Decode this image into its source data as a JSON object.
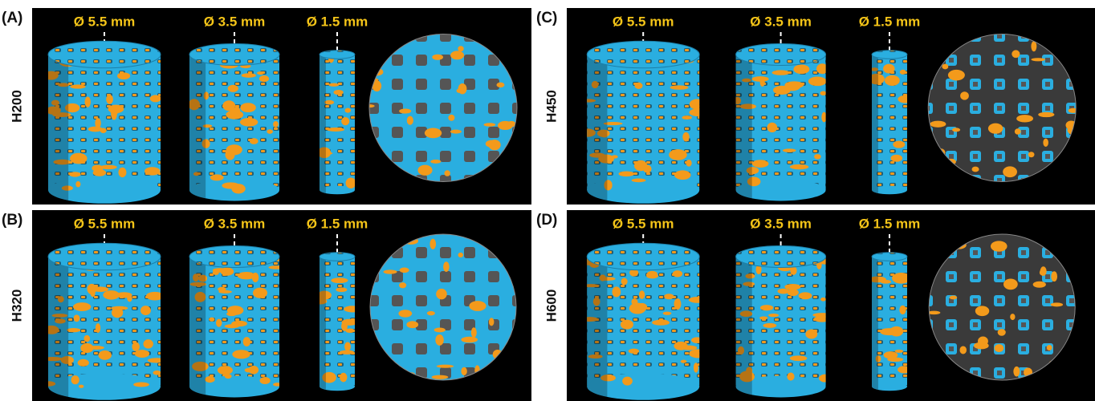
{
  "panels": [
    {
      "label": "(A)",
      "sample": "H200",
      "diameters": [
        "Ø 5.5 mm",
        "Ø 3.5 mm",
        "Ø 1.5 mm"
      ]
    },
    {
      "label": "(B)",
      "sample": "H320",
      "diameters": [
        "Ø 5.5 mm",
        "Ø 3.5 mm",
        "Ø 1.5 mm"
      ]
    },
    {
      "label": "(C)",
      "sample": "H450",
      "diameters": [
        "Ø 5.5 mm",
        "Ø 3.5 mm",
        "Ø 1.5 mm"
      ]
    },
    {
      "label": "(D)",
      "sample": "H600",
      "diameters": [
        "Ø 5.5 mm",
        "Ø 3.5 mm",
        "Ø 1.5 mm"
      ]
    }
  ]
}
